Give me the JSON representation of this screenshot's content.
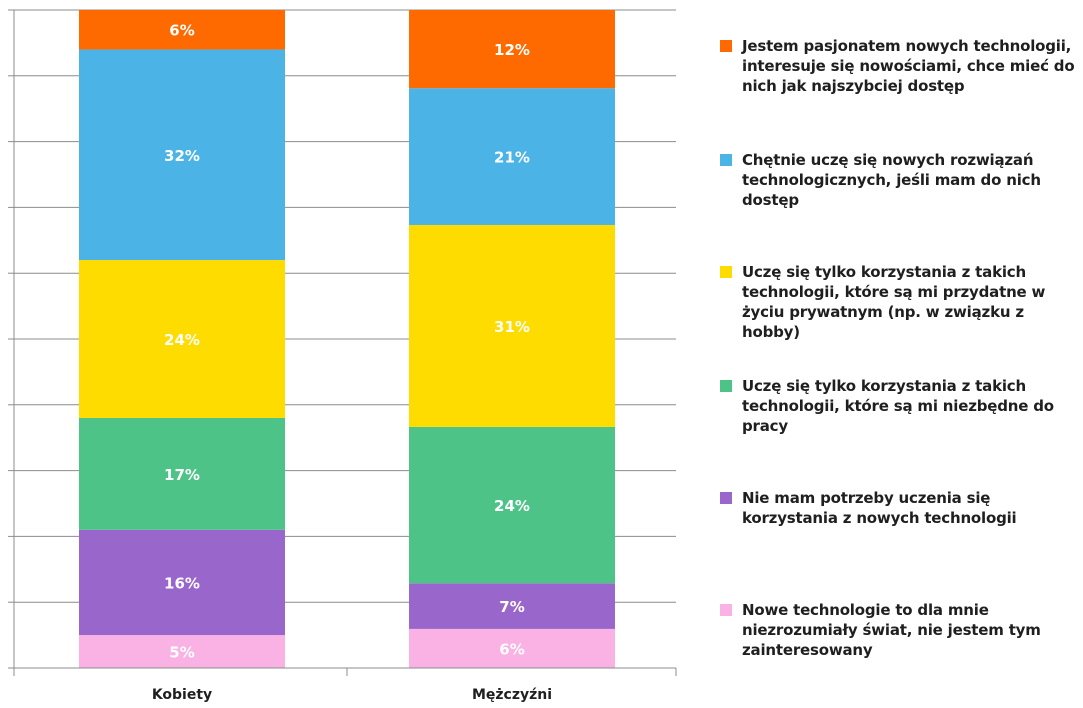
{
  "chart_data": {
    "type": "bar",
    "stacked": true,
    "normalized": true,
    "categories": [
      "Kobiety",
      "Mężczyźni"
    ],
    "series": [
      {
        "name": "Nowe technologie to dla mnie niezrozumiały świat, nie jestem tym zainteresowany",
        "color": "#F9B2E3",
        "values": [
          5,
          6
        ],
        "labels": [
          "5%",
          "6%"
        ]
      },
      {
        "name": "Nie mam potrzeby uczenia się korzystania z nowych technologii",
        "color": "#9966CC",
        "values": [
          16,
          7
        ],
        "labels": [
          "16%",
          "7%"
        ]
      },
      {
        "name": "Uczę się tylko korzystania z takich technologii, które są mi niezbędne do pracy",
        "color": "#4EC388",
        "values": [
          17,
          24
        ],
        "labels": [
          "17%",
          "24%"
        ]
      },
      {
        "name": "Uczę się tylko korzystania z takich technologii, które są mi przydatne w życiu prywatnym (np. w związku z hobby)",
        "color": "#FFDC00",
        "values": [
          24,
          31
        ],
        "labels": [
          "24%",
          "31%"
        ]
      },
      {
        "name": "Chętnie uczę się nowych rozwiązań technologicznych, jeśli mam do nich dostęp",
        "color": "#4BB3E6",
        "values": [
          32,
          21
        ],
        "labels": [
          "32%",
          "21%"
        ]
      },
      {
        "name": "Jestem pasjonatem nowych technologii, interesuje się nowościami, chce mieć do nich jak najszybciej dostęp",
        "color": "#FF6A00",
        "values": [
          6,
          12
        ],
        "labels": [
          "6%",
          "12%"
        ]
      }
    ],
    "ylim": [
      0,
      100
    ],
    "grid": true,
    "legend_position": "right",
    "legend_order": [
      5,
      4,
      3,
      2,
      1,
      0
    ]
  }
}
